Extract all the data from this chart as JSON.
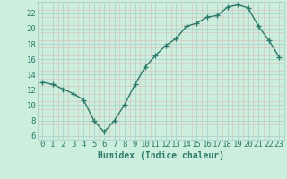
{
  "x": [
    0,
    1,
    2,
    3,
    4,
    5,
    6,
    7,
    8,
    9,
    10,
    11,
    12,
    13,
    14,
    15,
    16,
    17,
    18,
    19,
    20,
    21,
    22,
    23
  ],
  "y": [
    13,
    12.7,
    12.1,
    11.5,
    10.7,
    8.0,
    6.5,
    8.0,
    10.1,
    12.7,
    15.0,
    16.5,
    17.8,
    18.7,
    20.3,
    20.7,
    21.5,
    21.7,
    22.8,
    23.1,
    22.7,
    20.3,
    18.5,
    16.3
  ],
  "line_color": "#2d7a6a",
  "marker": "+",
  "marker_size": 4,
  "marker_lw": 1.0,
  "line_width": 1.0,
  "bg_color": "#cceedd",
  "grid_major_color": "#aacccc",
  "grid_minor_color": "#ddbcbc",
  "xlabel": "Humidex (Indice chaleur)",
  "xlim": [
    -0.5,
    23.5
  ],
  "ylim": [
    5.5,
    23.5
  ],
  "yticks": [
    6,
    8,
    10,
    12,
    14,
    16,
    18,
    20,
    22
  ],
  "xticks": [
    0,
    1,
    2,
    3,
    4,
    5,
    6,
    7,
    8,
    9,
    10,
    11,
    12,
    13,
    14,
    15,
    16,
    17,
    18,
    19,
    20,
    21,
    22,
    23
  ],
  "font_size": 6.5,
  "xlabel_font_size": 7,
  "label_color": "#2d7a6a"
}
